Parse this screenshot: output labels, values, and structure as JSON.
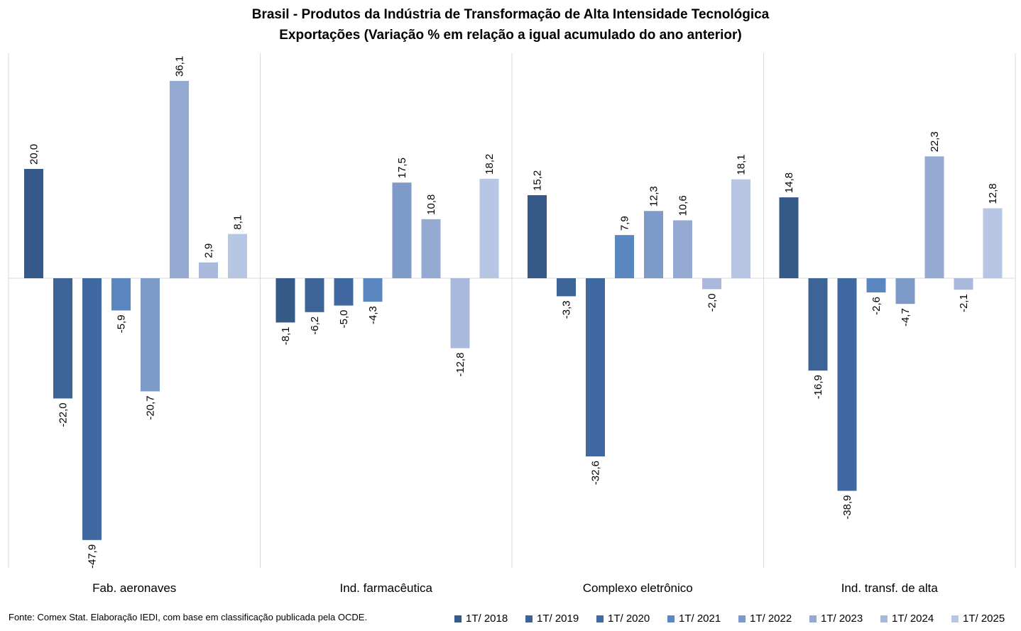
{
  "chart_data": {
    "type": "bar",
    "title": "Brasil - Produtos da Indústria de Transformação de Alta Intensidade Tecnológica",
    "subtitle": "Exportações (Variação % em relação a igual acumulado do ano anterior)",
    "categories": [
      "Fab. aeronaves",
      "Ind. farmacêutica",
      "Complexo eletrônico",
      "Ind. transf. de alta"
    ],
    "series": [
      {
        "name": "1T/ 2018",
        "color": "#355a87",
        "values": [
          20.0,
          -8.1,
          15.2,
          14.8
        ],
        "labels": [
          "20,0",
          "-8,1",
          "15,2",
          "14,8"
        ]
      },
      {
        "name": "1T/ 2019",
        "color": "#3c6497",
        "values": [
          -22.0,
          -6.2,
          -3.3,
          -16.9
        ],
        "labels": [
          "-22,0",
          "-6,2",
          "-3,3",
          "-16,9"
        ]
      },
      {
        "name": "1T/ 2020",
        "color": "#4169a1",
        "values": [
          -47.9,
          -5.0,
          -32.6,
          -38.9
        ],
        "labels": [
          "-47,9",
          "-5,0",
          "-32,6",
          "-38,9"
        ]
      },
      {
        "name": "1T/ 2021",
        "color": "#5b87c0",
        "values": [
          -5.9,
          -4.3,
          7.9,
          -2.6
        ],
        "labels": [
          "-5,9",
          "-4,3",
          "7,9",
          "-2,6"
        ]
      },
      {
        "name": "1T/ 2022",
        "color": "#7d9ac9",
        "values": [
          -20.7,
          17.5,
          12.3,
          -4.7
        ],
        "labels": [
          "-20,7",
          "17,5",
          "12,3",
          "-4,7"
        ]
      },
      {
        "name": "1T/ 2023",
        "color": "#94aad3",
        "values": [
          36.1,
          10.8,
          10.6,
          22.3
        ],
        "labels": [
          "36,1",
          "10,8",
          "10,6",
          "22,3"
        ]
      },
      {
        "name": "1T/ 2024",
        "color": "#a8b9dc",
        "values": [
          2.9,
          -12.8,
          -2.0,
          -2.1
        ],
        "labels": [
          "2,9",
          "-12,8",
          "-2,0",
          "-2,1"
        ]
      },
      {
        "name": "1T/ 2025",
        "color": "#b7c6e3",
        "values": [
          8.1,
          18.2,
          18.1,
          12.8
        ],
        "labels": [
          "8,1",
          "18,2",
          "18,1",
          "12,8"
        ]
      }
    ],
    "ylim": [
      -53,
      42
    ],
    "grid": false,
    "legend_position": "bottom-right",
    "source": "Fonte: Comex Stat. Elaboração IEDI, com base em classificação publicada pela OCDE."
  }
}
